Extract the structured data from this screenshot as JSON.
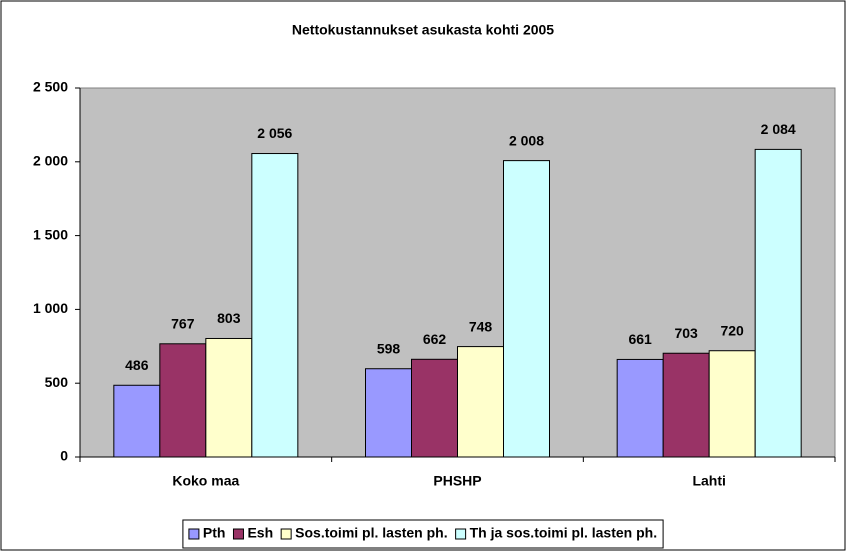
{
  "chart_data": {
    "type": "bar",
    "title": "Nettokustannukset asukasta kohti 2005",
    "categories": [
      "Koko maa",
      "PHSHP",
      "Lahti"
    ],
    "series": [
      {
        "name": "Pth",
        "color": "#9999ff",
        "values": [
          486,
          598,
          661
        ],
        "value_labels": [
          "486",
          "598",
          "661"
        ]
      },
      {
        "name": "Esh",
        "color": "#993366",
        "values": [
          767,
          662,
          703
        ],
        "value_labels": [
          "767",
          "662",
          "703"
        ]
      },
      {
        "name": "Sos.toimi pl. lasten ph.",
        "color": "#ffffcc",
        "values": [
          803,
          748,
          720
        ],
        "value_labels": [
          "803",
          "748",
          "720"
        ]
      },
      {
        "name": "Th ja sos.toimi pl. lasten ph.",
        "color": "#ccffff",
        "values": [
          2056,
          2008,
          2084
        ],
        "value_labels": [
          "2 056",
          "2 008",
          "2 084"
        ]
      }
    ],
    "ylim": [
      0,
      2500
    ],
    "yticks": [
      0,
      500,
      {
        "value": 1000,
        "label": "1 000"
      },
      {
        "value": 1500,
        "label": "1 500"
      },
      {
        "value": 2000,
        "label": "2 000"
      },
      {
        "value": 2500,
        "label": "2 500"
      }
    ],
    "grid": false,
    "legend": "bottom",
    "plot_background": "#c0c0c0"
  }
}
